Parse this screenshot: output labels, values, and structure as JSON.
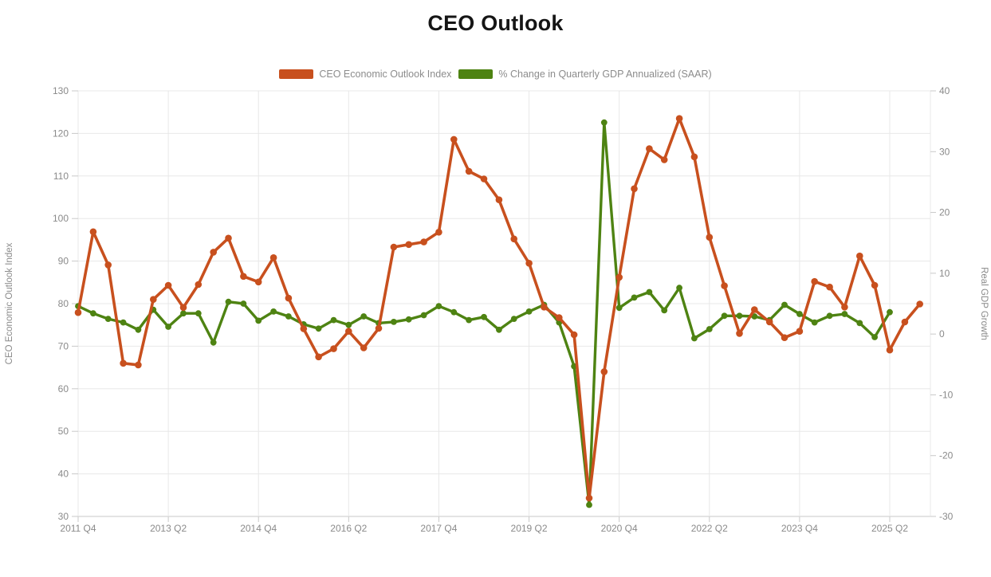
{
  "page": {
    "title": "CEO Outlook"
  },
  "legend": [
    {
      "label": "CEO Economic Outlook Index",
      "color": "#C8501E"
    },
    {
      "label": "% Change in Quarterly GDP Annualized (SAAR)",
      "color": "#4E8312"
    }
  ],
  "chart_data": {
    "type": "line",
    "title": "CEO Outlook",
    "legend_position": "top",
    "grid": true,
    "x_tick_labels": [
      "2011 Q4",
      "2013 Q2",
      "2014 Q4",
      "2016 Q2",
      "2017 Q4",
      "2019 Q2",
      "2020 Q4",
      "2022 Q2",
      "2023 Q4",
      "2025 Q2"
    ],
    "quarters": [
      "2011 Q4",
      "2012 Q1",
      "2012 Q2",
      "2012 Q3",
      "2012 Q4",
      "2013 Q1",
      "2013 Q2",
      "2013 Q3",
      "2013 Q4",
      "2014 Q1",
      "2014 Q2",
      "2014 Q3",
      "2014 Q4",
      "2015 Q1",
      "2015 Q2",
      "2015 Q3",
      "2015 Q4",
      "2016 Q1",
      "2016 Q2",
      "2016 Q3",
      "2016 Q4",
      "2017 Q1",
      "2017 Q2",
      "2017 Q3",
      "2017 Q4",
      "2018 Q1",
      "2018 Q2",
      "2018 Q3",
      "2018 Q4",
      "2019 Q1",
      "2019 Q2",
      "2019 Q3",
      "2019 Q4",
      "2020 Q1",
      "2020 Q2",
      "2020 Q3",
      "2020 Q4",
      "2021 Q1",
      "2021 Q2",
      "2021 Q3",
      "2021 Q4",
      "2022 Q1",
      "2022 Q2",
      "2022 Q3",
      "2022 Q4",
      "2023 Q1",
      "2023 Q2",
      "2023 Q3",
      "2023 Q4",
      "2024 Q1",
      "2024 Q2",
      "2024 Q3",
      "2024 Q4",
      "2025 Q1",
      "2025 Q2",
      "2025 Q3",
      "2025 Q4"
    ],
    "series": [
      {
        "name": "CEO Economic Outlook Index",
        "axis": "left",
        "color": "#C8501E",
        "values": [
          77.9,
          96.9,
          89.1,
          66.0,
          65.6,
          81.0,
          84.3,
          79.1,
          84.5,
          92.1,
          95.4,
          86.4,
          85.1,
          90.8,
          81.3,
          74.1,
          67.5,
          69.4,
          73.5,
          69.6,
          74.2,
          93.3,
          93.9,
          94.5,
          96.8,
          118.6,
          111.1,
          109.3,
          104.4,
          95.2,
          89.5,
          79.2,
          76.7,
          72.7,
          34.3,
          64.0,
          86.2,
          107.0,
          116.4,
          113.8,
          123.5,
          114.5,
          95.6,
          84.2,
          73.0,
          78.6,
          75.7,
          72.0,
          73.5,
          85.2,
          83.9,
          79.2,
          91.2,
          84.3,
          69.1,
          75.7,
          79.9
        ]
      },
      {
        "name": "% Change in Quarterly GDP Annualized (SAAR)",
        "axis": "right",
        "color": "#4E8312",
        "values": [
          4.6,
          3.4,
          2.5,
          1.9,
          0.7,
          4.0,
          1.2,
          3.4,
          3.4,
          -1.4,
          5.3,
          5.0,
          2.2,
          3.7,
          2.9,
          1.6,
          0.9,
          2.3,
          1.5,
          2.9,
          1.8,
          2.0,
          2.4,
          3.1,
          4.6,
          3.6,
          2.3,
          2.8,
          0.7,
          2.5,
          3.7,
          4.8,
          1.9,
          -5.3,
          -28.1,
          34.8,
          4.3,
          6.0,
          6.9,
          3.9,
          7.6,
          -0.7,
          0.8,
          3.0,
          3.0,
          2.9,
          2.3,
          4.8,
          3.3,
          1.9,
          3.0,
          3.3,
          1.8,
          -0.5,
          3.6
        ]
      }
    ],
    "left_axis": {
      "title": "CEO Economic Outlook Index",
      "min": 30,
      "max": 130,
      "tick_step": 10,
      "ticks": [
        30,
        40,
        50,
        60,
        70,
        80,
        90,
        100,
        110,
        120,
        130
      ]
    },
    "right_axis": {
      "title": "Real GDP Growth",
      "min": -30,
      "max": 40,
      "tick_step": 10,
      "ticks": [
        -30,
        -20,
        -10,
        0,
        10,
        20,
        30,
        40
      ]
    },
    "colors": {
      "grid_line": "#e8e8e8",
      "axis_line": "#c9c9c9",
      "tick_text": "#8a8a8a",
      "title_text": "#151515"
    }
  }
}
